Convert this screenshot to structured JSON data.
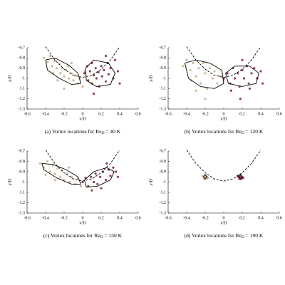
{
  "chart_data": [
    {
      "type": "scatter",
      "caption": "(a) Vortex locations for Re",
      "caption_subscript": "D",
      "caption_end": " = 40 K",
      "xlabel": "x/D",
      "ylabel": "y/D",
      "xlim": [
        -0.6,
        0.6
      ],
      "ylim": [
        -1.3,
        -0.7
      ],
      "xticks": [
        -0.6,
        -0.4,
        -0.2,
        0,
        0.2,
        0.4,
        0.6
      ],
      "yticks": [
        -0.7,
        -0.8,
        -0.9,
        -1,
        -1.1,
        -1.2,
        -1.3
      ],
      "curve": {
        "color": "#000000",
        "dashed": true,
        "x": [
          -0.4,
          -0.3,
          -0.2,
          -0.1,
          0,
          0.1,
          0.2,
          0.3,
          0.4
        ],
        "y": [
          -0.69,
          -0.82,
          -0.91,
          -0.97,
          -0.99,
          -0.97,
          -0.91,
          -0.82,
          -0.69
        ]
      },
      "series": [
        {
          "color": "#c8ad7f",
          "x": [
            -0.42,
            -0.38,
            -0.35,
            -0.33,
            -0.3,
            -0.28,
            -0.25,
            -0.24,
            -0.22,
            -0.2,
            -0.18,
            -0.16,
            -0.15,
            -0.12,
            -0.1,
            -0.08,
            -0.05,
            -0.03,
            0.0,
            -0.27,
            -0.32,
            -0.12,
            -0.2,
            0.02
          ],
          "y": [
            -0.8,
            -0.84,
            -0.78,
            -0.88,
            -0.83,
            -0.9,
            -0.86,
            -0.95,
            -0.9,
            -0.98,
            -0.92,
            -0.88,
            -1.0,
            -0.95,
            -1.02,
            -0.97,
            -1.05,
            -1.0,
            -1.08,
            -1.02,
            -0.95,
            -0.85,
            -1.1,
            -0.93
          ]
        },
        {
          "color": "#7a1f35",
          "x": [
            0.02,
            0.05,
            0.06,
            0.08,
            0.1,
            0.1,
            0.12,
            0.14,
            0.15,
            0.17,
            0.18,
            0.2,
            0.21,
            0.23,
            0.25,
            0.27,
            0.28,
            0.3,
            0.33,
            0.35,
            0.38,
            0.12,
            0.25,
            0.4
          ],
          "y": [
            -0.95,
            -0.88,
            -1.02,
            -0.93,
            -0.85,
            -1.05,
            -0.97,
            -0.9,
            -1.0,
            -0.94,
            -1.08,
            -0.88,
            -0.98,
            -0.92,
            -1.03,
            -0.85,
            -0.96,
            -0.9,
            -1.0,
            -0.82,
            -0.93,
            -1.15,
            -0.78,
            -1.05
          ]
        }
      ],
      "contours": [
        {
          "color": "#000000",
          "x": [
            -0.4,
            -0.3,
            -0.15,
            -0.05,
            -0.02,
            -0.12,
            -0.25,
            -0.38,
            -0.4
          ],
          "y": [
            -0.82,
            -0.8,
            -0.87,
            -0.95,
            -1.05,
            -1.06,
            -1.0,
            -0.92,
            -0.82
          ]
        },
        {
          "color": "#000000",
          "x": [
            0.03,
            0.12,
            0.28,
            0.35,
            0.3,
            0.15,
            0.04,
            0.03
          ],
          "y": [
            -0.9,
            -0.82,
            -0.85,
            -0.95,
            -1.06,
            -1.08,
            -1.02,
            -0.9
          ]
        }
      ]
    },
    {
      "type": "scatter",
      "caption": "(b) Vortex locations for Re",
      "caption_subscript": "D",
      "caption_end": " = 120 K",
      "xlabel": "x/D",
      "ylabel": "y/D",
      "xlim": [
        -0.6,
        0.6
      ],
      "ylim": [
        -1.3,
        -0.7
      ],
      "xticks": [
        -0.6,
        -0.4,
        -0.2,
        0,
        0.2,
        0.4,
        0.6
      ],
      "yticks": [
        -0.7,
        -0.8,
        -0.9,
        -1,
        -1.1,
        -1.2,
        -1.3
      ],
      "curve": {
        "color": "#000000",
        "dashed": true,
        "x": [
          -0.4,
          -0.3,
          -0.2,
          -0.1,
          0,
          0.1,
          0.2,
          0.3,
          0.4
        ],
        "y": [
          -0.69,
          -0.82,
          -0.91,
          -0.97,
          -0.99,
          -0.97,
          -0.91,
          -0.82,
          -0.69
        ]
      },
      "series": [
        {
          "color": "#c8ad7f",
          "x": [
            -0.44,
            -0.4,
            -0.36,
            -0.33,
            -0.3,
            -0.27,
            -0.25,
            -0.22,
            -0.2,
            -0.18,
            -0.15,
            -0.12,
            -0.1,
            -0.07,
            -0.04,
            0.0,
            -0.3,
            -0.2,
            -0.35,
            0.03
          ],
          "y": [
            -0.88,
            -0.82,
            -0.92,
            -0.85,
            -0.98,
            -0.9,
            -1.05,
            -0.85,
            -0.95,
            -1.1,
            -0.9,
            -1.0,
            -0.93,
            -1.05,
            -0.98,
            -1.02,
            -1.12,
            -1.2,
            -1.02,
            -0.95
          ]
        },
        {
          "color": "#7a1f35",
          "x": [
            0.0,
            0.04,
            0.07,
            0.1,
            0.12,
            0.15,
            0.17,
            0.2,
            0.22,
            0.25,
            0.27,
            0.3,
            0.33,
            0.36,
            0.4,
            0.08,
            0.18,
            0.28,
            0.2,
            0.42
          ],
          "y": [
            -1.0,
            -0.95,
            -1.05,
            -0.9,
            -1.0,
            -0.95,
            -1.08,
            -0.92,
            -1.0,
            -0.88,
            -1.05,
            -0.95,
            -0.9,
            -1.0,
            -0.93,
            -1.12,
            -1.2,
            -1.1,
            -0.82,
            -1.05
          ]
        }
      ],
      "contours": [
        {
          "color": "#000000",
          "x": [
            -0.42,
            -0.3,
            -0.15,
            -0.02,
            0.0,
            -0.1,
            -0.25,
            -0.38,
            -0.42
          ],
          "y": [
            -0.85,
            -0.82,
            -0.85,
            -0.92,
            -1.05,
            -1.1,
            -1.08,
            -1.0,
            -0.85
          ]
        },
        {
          "color": "#000000",
          "x": [
            0.02,
            0.12,
            0.28,
            0.38,
            0.35,
            0.2,
            0.05,
            0.02
          ],
          "y": [
            -0.95,
            -0.88,
            -0.88,
            -0.95,
            -1.05,
            -1.08,
            -1.05,
            -0.95
          ]
        }
      ]
    },
    {
      "type": "scatter",
      "caption": "(c) Vortex locations for Re",
      "caption_subscript": "D",
      "caption_end": " = 150 K",
      "xlabel": "x/D",
      "ylabel": "y/D",
      "xlim": [
        -0.6,
        0.6
      ],
      "ylim": [
        -1.3,
        -0.7
      ],
      "xticks": [
        -0.6,
        -0.4,
        -0.2,
        0,
        0.2,
        0.4,
        0.6
      ],
      "yticks": [
        -0.7,
        -0.8,
        -0.9,
        -1,
        -1.1,
        -1.2,
        -1.3
      ],
      "curve": {
        "color": "#000000",
        "dashed": true,
        "x": [
          -0.4,
          -0.3,
          -0.2,
          -0.1,
          0,
          0.1,
          0.2,
          0.3,
          0.4
        ],
        "y": [
          -0.69,
          -0.82,
          -0.91,
          -0.97,
          -0.99,
          -0.97,
          -0.91,
          -0.82,
          -0.69
        ]
      },
      "series": [
        {
          "color": "#c8ad7f",
          "x": [
            -0.46,
            -0.42,
            -0.38,
            -0.35,
            -0.32,
            -0.3,
            -0.27,
            -0.24,
            -0.22,
            -0.2,
            -0.17,
            -0.14,
            -0.12,
            -0.08,
            -0.05,
            -0.02,
            0.0,
            -0.3,
            -0.4,
            -0.15
          ],
          "y": [
            -0.82,
            -0.86,
            -0.8,
            -0.9,
            -0.84,
            -0.92,
            -0.87,
            -0.95,
            -0.89,
            -0.98,
            -0.92,
            -1.0,
            -0.95,
            -1.02,
            -0.97,
            -1.04,
            -1.0,
            -0.98,
            -0.93,
            -0.86
          ]
        },
        {
          "color": "#7a1f35",
          "x": [
            0.0,
            0.03,
            0.06,
            0.09,
            0.12,
            0.14,
            0.16,
            0.19,
            0.22,
            0.25,
            0.28,
            0.3,
            0.33,
            0.36,
            0.1,
            0.2,
            0.26,
            0.38
          ],
          "y": [
            -1.0,
            -0.96,
            -1.04,
            -0.95,
            -1.0,
            -0.92,
            -1.02,
            -0.95,
            -0.9,
            -0.98,
            -0.88,
            -0.94,
            -0.86,
            -0.9,
            -1.08,
            -1.06,
            -0.82,
            -0.95
          ]
        }
      ],
      "contours": [
        {
          "color": "#000000",
          "x": [
            -0.44,
            -0.32,
            -0.18,
            -0.05,
            -0.02,
            -0.12,
            -0.28,
            -0.42,
            -0.44
          ],
          "y": [
            -0.82,
            -0.83,
            -0.88,
            -0.95,
            -1.02,
            -1.02,
            -0.96,
            -0.88,
            -0.82
          ]
        },
        {
          "color": "#000000",
          "x": [
            0.02,
            0.12,
            0.26,
            0.34,
            0.3,
            0.16,
            0.04,
            0.02
          ],
          "y": [
            -0.98,
            -0.9,
            -0.86,
            -0.9,
            -0.98,
            -1.04,
            -1.05,
            -0.98
          ]
        }
      ]
    },
    {
      "type": "scatter",
      "caption": "(d) Vortex locations for Re",
      "caption_subscript": "D",
      "caption_end": " = 190 K",
      "xlabel": "x/D",
      "ylabel": "y/D",
      "xlim": [
        -0.6,
        0.6
      ],
      "ylim": [
        -1.3,
        -0.7
      ],
      "xticks": [
        -0.6,
        -0.4,
        -0.2,
        0,
        0.2,
        0.4,
        0.6
      ],
      "yticks": [
        -0.7,
        -0.8,
        -0.9,
        -1,
        -1.1,
        -1.2,
        -1.3
      ],
      "curve": {
        "color": "#000000",
        "dashed": true,
        "x": [
          -0.4,
          -0.3,
          -0.2,
          -0.1,
          0,
          0.1,
          0.2,
          0.3,
          0.4
        ],
        "y": [
          -0.69,
          -0.82,
          -0.91,
          -0.97,
          -0.99,
          -0.97,
          -0.91,
          -0.82,
          -0.69
        ]
      },
      "series": [
        {
          "color": "#c8ad7f",
          "x": [
            -0.22,
            -0.2,
            -0.18,
            -0.21,
            -0.19,
            -0.2,
            -0.23,
            -0.17
          ],
          "y": [
            -0.95,
            -0.93,
            -0.95,
            -0.97,
            -0.97,
            -0.95,
            -0.94,
            -0.96
          ]
        },
        {
          "color": "#7a1f35",
          "x": [
            0.16,
            0.18,
            0.2,
            0.17,
            0.19,
            0.18,
            0.15,
            0.21
          ],
          "y": [
            -0.95,
            -0.93,
            -0.95,
            -0.97,
            -0.97,
            -0.95,
            -0.94,
            -0.96
          ]
        }
      ],
      "contours": [
        {
          "color": "#000000",
          "x": [
            -0.22,
            -0.2,
            -0.18,
            -0.2,
            -0.22
          ],
          "y": [
            -0.95,
            -0.93,
            -0.95,
            -0.97,
            -0.95
          ]
        },
        {
          "color": "#000000",
          "x": [
            0.16,
            0.18,
            0.2,
            0.18,
            0.16
          ],
          "y": [
            -0.95,
            -0.93,
            -0.95,
            -0.97,
            -0.95
          ]
        }
      ]
    }
  ]
}
